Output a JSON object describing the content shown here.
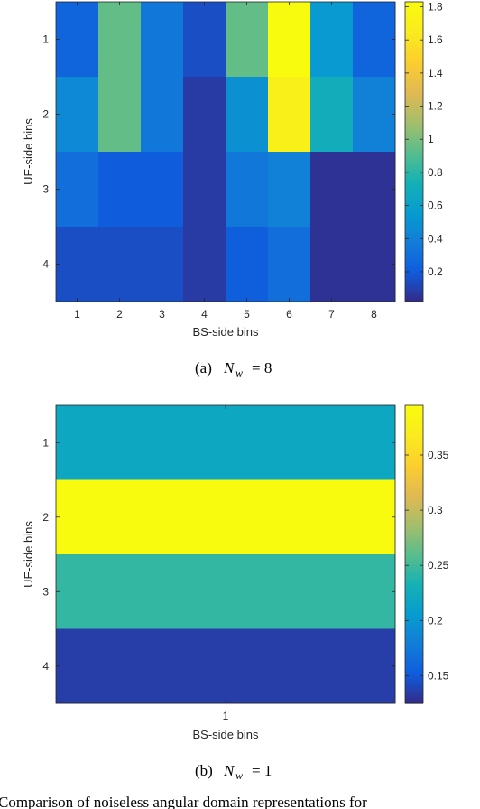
{
  "chart_data": [
    {
      "type": "heatmap",
      "xlabel": "BS-side bins",
      "ylabel": "UE-side bins",
      "x_ticks": [
        "1",
        "2",
        "3",
        "4",
        "5",
        "6",
        "7",
        "8"
      ],
      "y_ticks": [
        "1",
        "2",
        "3",
        "4"
      ],
      "colorbar_ticks": [
        "0.2",
        "0.4",
        "0.6",
        "0.8",
        "1",
        "1.2",
        "1.4",
        "1.6",
        "1.8"
      ],
      "colorbar_range": [
        0.02,
        1.83
      ],
      "colormap": "parula",
      "values": [
        [
          0.25,
          0.95,
          0.35,
          0.15,
          0.95,
          1.83,
          0.55,
          0.25
        ],
        [
          0.45,
          0.95,
          0.35,
          0.08,
          0.5,
          1.7,
          0.7,
          0.4
        ],
        [
          0.3,
          0.2,
          0.2,
          0.08,
          0.35,
          0.4,
          0.05,
          0.05
        ],
        [
          0.15,
          0.15,
          0.15,
          0.08,
          0.22,
          0.3,
          0.05,
          0.05
        ]
      ]
    },
    {
      "type": "heatmap",
      "xlabel": "BS-side bins",
      "ylabel": "UE-side bins",
      "x_ticks": [
        "1"
      ],
      "y_ticks": [
        "1",
        "2",
        "3",
        "4"
      ],
      "colorbar_ticks": [
        "0.15",
        "0.2",
        "0.25",
        "0.3",
        "0.35"
      ],
      "colorbar_range": [
        0.125,
        0.395
      ],
      "colormap": "parula",
      "values": [
        [
          0.22
        ],
        [
          0.395
        ],
        [
          0.245
        ],
        [
          0.135
        ]
      ]
    }
  ],
  "captions": {
    "a_prefix": "(a)",
    "a_math_var": "N",
    "a_math_sub": "w",
    "a_math_rest": "= 8",
    "b_prefix": "(b)",
    "b_math_var": "N",
    "b_math_sub": "w",
    "b_math_rest": "= 1"
  },
  "bottom_text": "Comparison of noiseless angular domain representations for"
}
